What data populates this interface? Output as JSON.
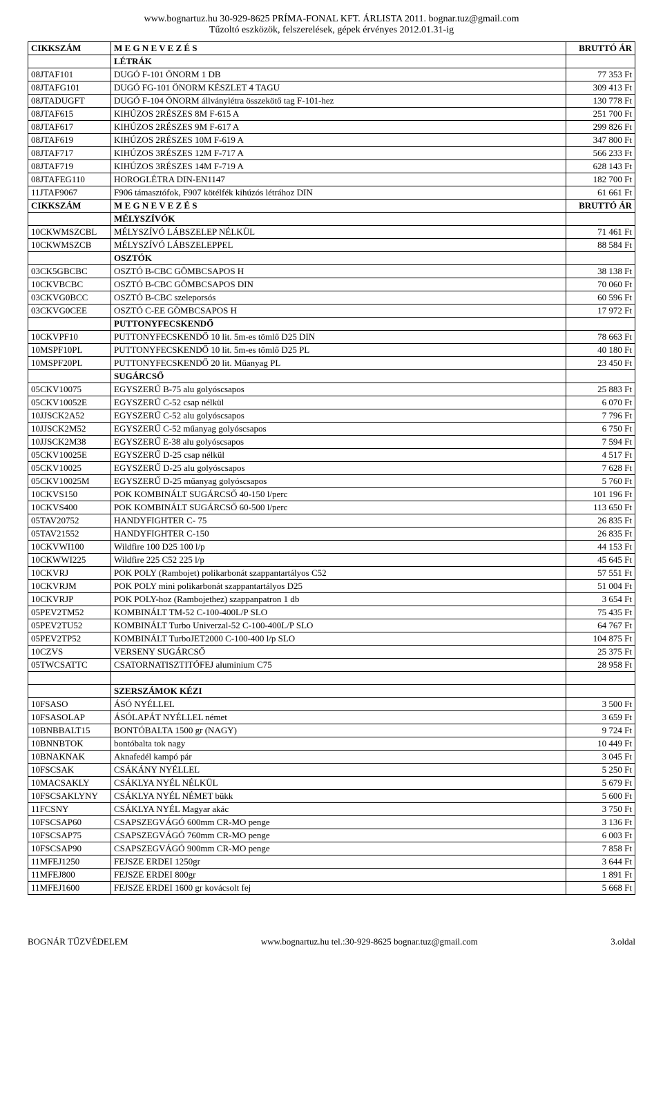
{
  "header": {
    "line1": "www.bognartuz.hu  30-929-8625  PRÍMA-FONAL KFT.  ÁRLISTA 2011.   bognar.tuz@gmail.com",
    "line2": "Tűzoltó eszközök, felszerelések, gépek érvényes 2012.01.31-ig"
  },
  "columns": {
    "code": "CIKKSZÁM",
    "desc": "M  E  G  N  E  V  E  Z  É  S",
    "price": "BRUTTÓ ÁR"
  },
  "sections": {
    "letrak": "LÉTRÁK",
    "melyszivok": "MÉLYSZÍVÓK",
    "osztok": "OSZTÓK",
    "puttony": "PUTTONYFECSKENDŐ",
    "sugarcso": "SUGÁRCSŐ",
    "szerszamok": "SZERSZÁMOK KÉZI"
  },
  "rows": {
    "r1": {
      "c": "08JTAF101",
      "d": "DUGÓ F-101  ÖNORM 1 DB",
      "p": "77 353 Ft"
    },
    "r2": {
      "c": "08JTAFG101",
      "d": "DUGÓ FG-101  ÖNORM KÉSZLET 4 TAGU",
      "p": "309 413 Ft"
    },
    "r3": {
      "c": "08JTADUGFT",
      "d": "DUGÓ F-104  ÖNORM állványlétra összekötő tag F-101-hez",
      "p": "130 778 Ft"
    },
    "r4": {
      "c": "08JTAF615",
      "d": "KIHÚZOS 2RÉSZES  8M   F-615  A",
      "p": "251 700 Ft"
    },
    "r5": {
      "c": "08JTAF617",
      "d": "KIHÚZOS 2RÉSZES  9M   F-617  A",
      "p": "299 826 Ft"
    },
    "r6": {
      "c": "08JTAF619",
      "d": "KIHÚZOS 2RÉSZES 10M  F-619  A",
      "p": "347 800 Ft"
    },
    "r7": {
      "c": "08JTAF717",
      "d": "KIHÚZOS 3RÉSZES 12M  F-717  A",
      "p": "566 233 Ft"
    },
    "r8": {
      "c": "08JTAF719",
      "d": "KIHÚZOS 3RÉSZES 14M  F-719  A",
      "p": "628 143 Ft"
    },
    "r9": {
      "c": "08JTAFEG110",
      "d": "HOROGLÉTRA DIN-EN1147",
      "p": "182 700 Ft"
    },
    "r10": {
      "c": "11JTAF9067",
      "d": "F906 támasztófok, F907 kötélfék kihúzós létrához DIN",
      "p": "61 661 Ft"
    },
    "r11": {
      "c": "10CKWMSZCBL",
      "d": "MÉLYSZÍVÓ LÁBSZELEP NÉLKÜL",
      "p": "71 461 Ft"
    },
    "r12": {
      "c": "10CKWMSZCB",
      "d": "MÉLYSZÍVÓ LÁBSZELEPPEL",
      "p": "88 584 Ft"
    },
    "r13": {
      "c": "03CK5GBCBC",
      "d": "OSZTÓ B-CBC   GÖMBCSAPOS   H",
      "p": "38 138 Ft"
    },
    "r14": {
      "c": "10CKVBCBC",
      "d": "OSZTÓ B-CBC   GÖMBCSAPOS   DIN",
      "p": "70 060 Ft"
    },
    "r15": {
      "c": "03CKVG0BCC",
      "d": "OSZTÓ B-CBC   szeleporsós",
      "p": "60 596 Ft"
    },
    "r16": {
      "c": "03CKVG0CEE",
      "d": "OSZTÓ C-EE    GÖMBCSAPOS   H",
      "p": "17 972 Ft"
    },
    "r17": {
      "c": "10CKVPF10",
      "d": "PUTTONYFECSKENDŐ 10 lit. 5m-es tömlő D25 DIN",
      "p": "78 663 Ft"
    },
    "r18": {
      "c": "10MSPF10PL",
      "d": "PUTTONYFECSKENDŐ 10 lit. 5m-es tömlő D25 PL",
      "p": "40 180 Ft"
    },
    "r19": {
      "c": "10MSPF20PL",
      "d": "PUTTONYFECSKENDŐ 20 lit. Műanyag PL",
      "p": "23 450 Ft"
    },
    "r20": {
      "c": "05CKV10075",
      "d": "EGYSZERŰ  B-75   alu golyóscsapos",
      "p": "25 883 Ft"
    },
    "r21": {
      "c": "05CKV10052E",
      "d": "EGYSZERŰ  C-52   csap nélkül",
      "p": "6 070 Ft"
    },
    "r22": {
      "c": "10JJSCK2A52",
      "d": "EGYSZERŰ  C-52   alu golyóscsapos",
      "p": "7 796 Ft"
    },
    "r23": {
      "c": "10JJSCK2M52",
      "d": "EGYSZERŰ  C-52   műanyag golyóscsapos",
      "p": "6 750 Ft"
    },
    "r24": {
      "c": "10JJSCK2M38",
      "d": "EGYSZERŰ  E-38   alu golyóscsapos",
      "p": "7 594 Ft"
    },
    "r25": {
      "c": "05CKV10025E",
      "d": "EGYSZERŰ  D-25   csap nélkül",
      "p": "4 517 Ft"
    },
    "r26": {
      "c": "05CKV10025",
      "d": "EGYSZERŰ  D-25   alu golyóscsapos",
      "p": "7 628 Ft"
    },
    "r27": {
      "c": "05CKV10025M",
      "d": "EGYSZERŰ  D-25   műanyag golyóscsapos",
      "p": "5 760 Ft"
    },
    "r28": {
      "c": "10CKVS150",
      "d": "POK KOMBINÁLT SUGÁRCSŐ   40-150 l/perc",
      "p": "101 196 Ft"
    },
    "r29": {
      "c": "10CKVS400",
      "d": "POK KOMBINÁLT SUGÁRCSŐ   60-500 l/perc",
      "p": "113 650 Ft"
    },
    "r30": {
      "c": "05TAV20752",
      "d": "HANDYFIGHTER                          C- 75",
      "p": "26 835 Ft"
    },
    "r31": {
      "c": "05TAV21552",
      "d": "HANDYFIGHTER                          C-150",
      "p": "26 835 Ft"
    },
    "r32": {
      "c": "10CKVWI100",
      "d": "Wildfire 100 D25  100 l/p",
      "p": "44 153 Ft"
    },
    "r33": {
      "c": "10CKWWI225",
      "d": "Wildfire 225 C52  225 l/p",
      "p": "45 645 Ft"
    },
    "r34": {
      "c": "10CKVRJ",
      "d": "POK POLY (Rambojet) polikarbonát szappantartályos C52",
      "p": "57 551 Ft"
    },
    "r35": {
      "c": "10CKVRJM",
      "d": "POK POLY mini polikarbonát szappantartályos D25",
      "p": "51 004 Ft"
    },
    "r36": {
      "c": "10CKVRJP",
      "d": "POK POLY-hoz (Rambojethez) szappanpatron 1 db",
      "p": "3 654 Ft"
    },
    "r37": {
      "c": "05PEV2TM52",
      "d": "KOMBINÁLT   TM-52         C-100-400L/P SLO",
      "p": "75 435 Ft"
    },
    "r38": {
      "c": "05PEV2TU52",
      "d": "KOMBINÁLT   Turbo Univerzal-52         C-100-400L/P SLO",
      "p": "64 767 Ft"
    },
    "r39": {
      "c": "05PEV2TP52",
      "d": "KOMBINÁLT TurboJET2000 C-100-400 l/p SLO",
      "p": "104 875 Ft"
    },
    "r40": {
      "c": "10CZVS",
      "d": "VERSENY SUGÁRCSŐ",
      "p": "25 375 Ft"
    },
    "r41": {
      "c": "05TWCSATTC",
      "d": "CSATORNATISZTITÓFEJ  aluminium C75",
      "p": "28 958 Ft"
    },
    "r42": {
      "c": "10FSASO",
      "d": "ÁSÓ NYÉLLEL",
      "p": "3 500 Ft"
    },
    "r43": {
      "c": "10FSASOLAP",
      "d": "ÁSÓLAPÁT NYÉLLEL német",
      "p": "3 659 Ft"
    },
    "r44": {
      "c": "10BNBBALT15",
      "d": "BONTÓBALTA 1500 gr  (NAGY)",
      "p": "9 724 Ft"
    },
    "r45": {
      "c": "10BNNBTOK",
      "d": "bontóbalta tok nagy",
      "p": "10 449 Ft"
    },
    "r46": {
      "c": "10BNAKNAK",
      "d": "Aknafedél kampó pár",
      "p": "3 045 Ft"
    },
    "r47": {
      "c": "10FSCSAK",
      "d": "CSÁKÁNY NYÉLLEL",
      "p": "5 250 Ft"
    },
    "r48": {
      "c": "10MACSAKLY",
      "d": "CSÁKLYA NYÉL NÉLKÜL",
      "p": "5 679 Ft"
    },
    "r49": {
      "c": "10FSCSAKLYNY",
      "d": "CSÁKLYA NYÉL NÉMET bükk",
      "p": "5 600 Ft"
    },
    "r50": {
      "c": "11FCSNY",
      "d": "CSÁKLYA NYÉL Magyar akác",
      "p": "3 750 Ft"
    },
    "r51": {
      "c": "10FSCSAP60",
      "d": "CSAPSZEGVÁGÓ 600mm CR-MO penge",
      "p": "3 136 Ft"
    },
    "r52": {
      "c": "10FSCSAP75",
      "d": "CSAPSZEGVÁGÓ 760mm CR-MO penge",
      "p": "6 003 Ft"
    },
    "r53": {
      "c": "10FSCSAP90",
      "d": "CSAPSZEGVÁGÓ 900mm CR-MO penge",
      "p": "7 858 Ft"
    },
    "r54": {
      "c": "11MFEJ1250",
      "d": "FEJSZE ERDEI 1250gr",
      "p": "3 644 Ft"
    },
    "r55": {
      "c": "11MFEJ800",
      "d": "FEJSZE ERDEI  800gr",
      "p": "1 891 Ft"
    },
    "r56": {
      "c": "11MFEJ1600",
      "d": "FEJSZE ERDEI  1600 gr kovácsolt fej",
      "p": "5 668 Ft"
    }
  },
  "footer": {
    "left": "BOGNÁR TŰZVÉDELEM",
    "mid": "www.bognartuz.hu     tel.:30-929-8625     bognar.tuz@gmail.com",
    "right": "3.oldal"
  }
}
